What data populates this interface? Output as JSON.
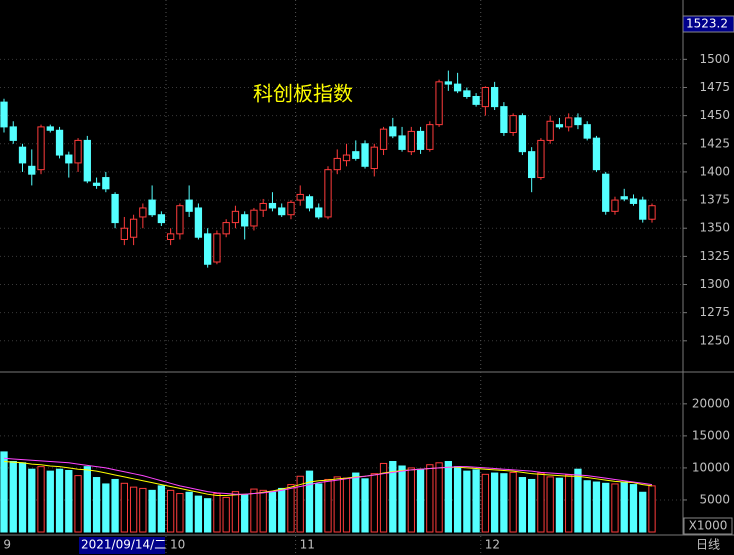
{
  "chart_data": {
    "type": "candlestick",
    "title": "科创板指数",
    "cursor_label": "1523.2",
    "cursor_date": "2021/09/14/二",
    "period_label": "日线",
    "categories": [
      "9",
      null,
      null,
      null,
      null,
      null,
      null,
      null,
      null,
      null,
      null,
      null,
      null,
      null,
      null,
      null,
      null,
      null,
      "10",
      null,
      null,
      null,
      null,
      null,
      null,
      null,
      null,
      null,
      null,
      null,
      null,
      null,
      "11",
      null,
      null,
      null,
      null,
      null,
      null,
      null,
      null,
      null,
      null,
      null,
      null,
      null,
      null,
      null,
      null,
      null,
      null,
      null,
      "12",
      null,
      null,
      null,
      null,
      null,
      null,
      null,
      null,
      null,
      null,
      null,
      null,
      null,
      null,
      null,
      null,
      null,
      null
    ],
    "open": [
      1462,
      1440,
      1422,
      1405,
      1402,
      1440,
      1437,
      1415,
      1408,
      1428,
      1390,
      1395,
      1380,
      1340,
      1342,
      1360,
      1375,
      1362,
      1340,
      1345,
      1375,
      1368,
      1345,
      1320,
      1345,
      1355,
      1362,
      1352,
      1366,
      1372,
      1368,
      1362,
      1375,
      1378,
      1368,
      1360,
      1402,
      1410,
      1418,
      1425,
      1403,
      1420,
      1440,
      1432,
      1418,
      1436,
      1420,
      1442,
      1480,
      1478,
      1472,
      1467,
      1458,
      1475,
      1458,
      1435,
      1450,
      1418,
      1395,
      1428,
      1442,
      1440,
      1448,
      1442,
      1430,
      1398,
      1365,
      1378,
      1376,
      1375,
      1358
    ],
    "high": [
      1465,
      1445,
      1425,
      1420,
      1442,
      1442,
      1440,
      1418,
      1430,
      1432,
      1395,
      1400,
      1382,
      1360,
      1362,
      1372,
      1388,
      1365,
      1350,
      1372,
      1388,
      1372,
      1350,
      1348,
      1358,
      1370,
      1365,
      1368,
      1376,
      1382,
      1372,
      1375,
      1388,
      1380,
      1372,
      1405,
      1420,
      1425,
      1428,
      1428,
      1425,
      1440,
      1448,
      1440,
      1440,
      1440,
      1445,
      1482,
      1490,
      1488,
      1475,
      1470,
      1476,
      1480,
      1462,
      1452,
      1452,
      1422,
      1430,
      1450,
      1448,
      1452,
      1452,
      1445,
      1432,
      1400,
      1378,
      1385,
      1380,
      1378,
      1372
    ],
    "low": [
      1435,
      1425,
      1400,
      1388,
      1398,
      1435,
      1412,
      1395,
      1400,
      1390,
      1385,
      1382,
      1350,
      1335,
      1335,
      1350,
      1360,
      1352,
      1335,
      1340,
      1360,
      1340,
      1315,
      1318,
      1342,
      1350,
      1340,
      1348,
      1360,
      1365,
      1360,
      1358,
      1370,
      1365,
      1358,
      1358,
      1398,
      1405,
      1410,
      1403,
      1396,
      1415,
      1430,
      1418,
      1415,
      1416,
      1418,
      1440,
      1472,
      1470,
      1465,
      1458,
      1450,
      1455,
      1432,
      1432,
      1415,
      1382,
      1393,
      1425,
      1438,
      1436,
      1438,
      1428,
      1400,
      1362,
      1362,
      1374,
      1370,
      1355,
      1355
    ],
    "close": [
      1440,
      1428,
      1408,
      1398,
      1440,
      1437,
      1415,
      1408,
      1428,
      1392,
      1388,
      1385,
      1355,
      1350,
      1358,
      1368,
      1362,
      1355,
      1345,
      1370,
      1365,
      1342,
      1318,
      1345,
      1355,
      1365,
      1352,
      1366,
      1372,
      1368,
      1362,
      1373,
      1380,
      1368,
      1360,
      1402,
      1412,
      1415,
      1412,
      1405,
      1422,
      1438,
      1432,
      1420,
      1436,
      1420,
      1442,
      1480,
      1478,
      1472,
      1467,
      1460,
      1475,
      1458,
      1435,
      1450,
      1418,
      1395,
      1428,
      1445,
      1440,
      1448,
      1442,
      1430,
      1402,
      1365,
      1375,
      1376,
      1372,
      1358,
      1370
    ],
    "colors": {
      "up": "#ff3c3c",
      "down": "#54ffff"
    },
    "ylim": [
      1222.3,
      1552.7
    ],
    "yticks": [
      1250,
      1275,
      1300,
      1325,
      1350,
      1375,
      1400,
      1425,
      1450,
      1475,
      1500
    ],
    "grid": true,
    "volume": {
      "values": [
        12500,
        11000,
        10800,
        9800,
        10200,
        9500,
        9800,
        9600,
        8800,
        10200,
        8500,
        7500,
        8200,
        7600,
        7000,
        6800,
        6500,
        7200,
        6500,
        6000,
        6200,
        5600,
        5200,
        6000,
        5400,
        6300,
        5800,
        6700,
        6500,
        6200,
        6800,
        7400,
        8700,
        9500,
        7500,
        8200,
        8600,
        8400,
        9200,
        8300,
        9100,
        10700,
        11000,
        10300,
        10000,
        9800,
        10500,
        10800,
        11000,
        10200,
        9500,
        9700,
        9000,
        9200,
        9100,
        9300,
        8500,
        8200,
        9200,
        8600,
        8400,
        8900,
        9800,
        8000,
        7800,
        7600,
        7500,
        7800,
        7400,
        6200,
        7200
      ],
      "ylim": [
        0,
        24500
      ],
      "yticks": [
        5000,
        10000,
        15000,
        20000
      ],
      "unit_label": "X1000",
      "series": [
        {
          "color": "#ffff00",
          "values": [
            11000,
            10900,
            10800,
            10600,
            10500,
            10300,
            10200,
            10000,
            9800,
            9700,
            9500,
            9200,
            8900,
            8600,
            8300,
            8000,
            7700,
            7400,
            7100,
            6800,
            6500,
            6200,
            5900,
            5700,
            5700,
            5800,
            5900,
            6000,
            6200,
            6400,
            6700,
            7000,
            7400,
            7800,
            8000,
            8100,
            8300,
            8400,
            8600,
            8700,
            8900,
            9200,
            9400,
            9600,
            9700,
            9800,
            9900,
            10000,
            10100,
            10100,
            10000,
            9900,
            9800,
            9700,
            9600,
            9500,
            9300,
            9100,
            9000,
            8900,
            8800,
            8700,
            8700,
            8500,
            8300,
            8100,
            7900,
            7800,
            7700,
            7400,
            7200
          ]
        },
        {
          "color": "#ff44ff",
          "values": [
            11500,
            11400,
            11300,
            11200,
            11100,
            11000,
            10900,
            10800,
            10600,
            10400,
            10200,
            10000,
            9700,
            9400,
            9100,
            8800,
            8400,
            8000,
            7600,
            7200,
            6900,
            6600,
            6300,
            6100,
            6000,
            5900,
            5900,
            6000,
            6100,
            6300,
            6500,
            6800,
            7100,
            7400,
            7700,
            7900,
            8100,
            8300,
            8500,
            8700,
            8900,
            9100,
            9300,
            9500,
            9700,
            9800,
            9900,
            10000,
            10100,
            10200,
            10200,
            10100,
            10000,
            9900,
            9800,
            9700,
            9600,
            9500,
            9300,
            9200,
            9100,
            9000,
            8900,
            8800,
            8600,
            8400,
            8200,
            8000,
            7800,
            7600,
            7400
          ]
        }
      ]
    }
  }
}
